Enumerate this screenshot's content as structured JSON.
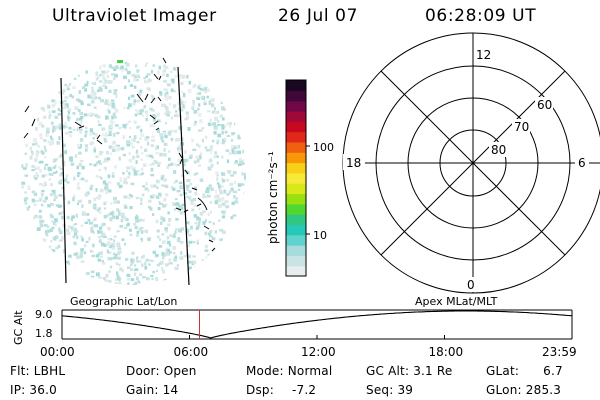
{
  "header": {
    "title": "Ultraviolet Imager",
    "date": "26 Jul 07",
    "time": "06:28:09 UT"
  },
  "colorbar": {
    "label": "photon cm⁻²s⁻¹",
    "tick_labels": [
      "100",
      "10"
    ],
    "colors": [
      "#e8eeee",
      "#c8e4e4",
      "#a8dcdc",
      "#60d4cc",
      "#28c8b8",
      "#30c880",
      "#50d830",
      "#98e010",
      "#d8e818",
      "#f8e838",
      "#f8d018",
      "#f89808",
      "#f06010",
      "#e02818",
      "#c80820",
      "#a00838",
      "#700848",
      "#400838",
      "#1a0820"
    ]
  },
  "polar_grid": {
    "mlt_labels": [
      "12",
      "18",
      "6",
      "0"
    ],
    "lat_labels": [
      "60",
      "70",
      "80"
    ]
  },
  "timeline": {
    "ylabel": "GC Alt",
    "y_ticks": [
      "9.0",
      "1.8"
    ],
    "left_title": "Geographic Lat/Lon",
    "right_title": "Apex MLat/MLT",
    "x_ticks": [
      "00:00",
      "06:00",
      "12:00",
      "18:00",
      "23:59"
    ],
    "current_time_hours": 6.47,
    "current_marker_color": "#cc3333"
  },
  "status": {
    "filter": "Flt: LBHL",
    "ip": "IP: 36.0",
    "door": "Door: Open",
    "gain": "Gain: 14",
    "mode": "Mode: Normal",
    "dsp_label": "Dsp:",
    "dsp_value": "-7.2",
    "gc_alt": "GC Alt: 3.1 Re",
    "seq": "Seq: 39",
    "glat_label": "GLat:",
    "glat_value": "6.7",
    "glon": "GLon: 285.3"
  }
}
